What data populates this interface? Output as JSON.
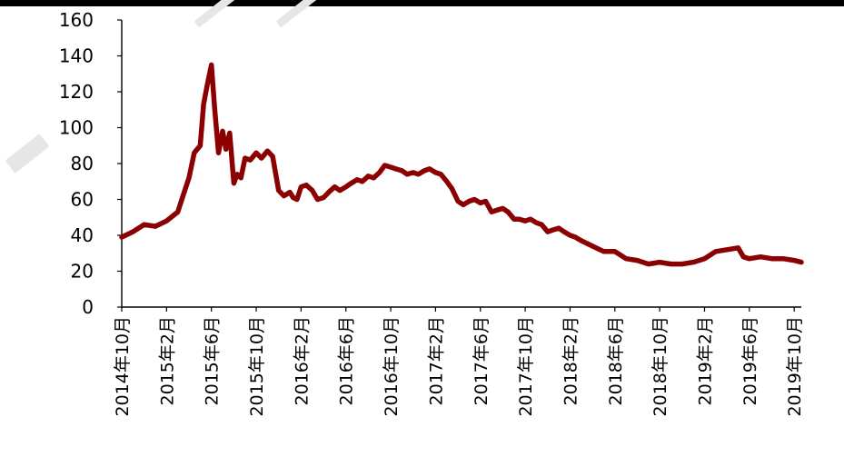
{
  "chart_data": {
    "type": "line",
    "title": "",
    "xlabel": "",
    "ylabel": "",
    "ylim": [
      0,
      160
    ],
    "yticks": [
      "0",
      "20",
      "40",
      "60",
      "80",
      "100",
      "120",
      "140",
      "160"
    ],
    "xticks": [
      "2014年10月",
      "2015年2月",
      "2015年6月",
      "2015年10月",
      "2016年2月",
      "2016年6月",
      "2016年10月",
      "2017年2月",
      "2017年6月",
      "2017年10月",
      "2018年2月",
      "2018年6月",
      "2018年10月",
      "2019年2月",
      "2019年6月",
      "2019年10月"
    ],
    "grid": false,
    "legend": "none",
    "line_color": "#8b0000",
    "series": [
      {
        "x": [
          "2014-10",
          "2014-11",
          "2014-12",
          "2015-01",
          "2015-02",
          "2015-03",
          "2015-03-15",
          "2015-04",
          "2015-04-15",
          "2015-05",
          "2015-05-10",
          "2015-05-20",
          "2015-06",
          "2015-06-10",
          "2015-06-20",
          "2015-07",
          "2015-07-10",
          "2015-07-20",
          "2015-08",
          "2015-08-10",
          "2015-08-20",
          "2015-09",
          "2015-09-15",
          "2015-10",
          "2015-10-15",
          "2015-11",
          "2015-11-15",
          "2015-12",
          "2015-12-15",
          "2016-01",
          "2016-01-10",
          "2016-01-20",
          "2016-02",
          "2016-02-15",
          "2016-03",
          "2016-03-15",
          "2016-04",
          "2016-04-15",
          "2016-05",
          "2016-05-15",
          "2016-06",
          "2016-06-15",
          "2016-07",
          "2016-07-15",
          "2016-08",
          "2016-08-15",
          "2016-09",
          "2016-09-15",
          "2016-10",
          "2016-10-15",
          "2016-11",
          "2016-11-15",
          "2016-12",
          "2016-12-15",
          "2017-01",
          "2017-01-15",
          "2017-02",
          "2017-02-15",
          "2017-03",
          "2017-03-15",
          "2017-04",
          "2017-04-15",
          "2017-05",
          "2017-05-15",
          "2017-06",
          "2017-06-15",
          "2017-07",
          "2017-07-15",
          "2017-08",
          "2017-08-15",
          "2017-09",
          "2017-09-15",
          "2017-10",
          "2017-10-15",
          "2017-11",
          "2017-11-15",
          "2017-12",
          "2017-12-15",
          "2018-01",
          "2018-01-15",
          "2018-02",
          "2018-02-15",
          "2018-03",
          "2018-04",
          "2018-05",
          "2018-06",
          "2018-07",
          "2018-08",
          "2018-09",
          "2018-10",
          "2018-11",
          "2018-12",
          "2019-01",
          "2019-02",
          "2019-03",
          "2019-04",
          "2019-05",
          "2019-05-15",
          "2019-06",
          "2019-07",
          "2019-08",
          "2019-09",
          "2019-10",
          "2019-10-20"
        ],
        "y": [
          39,
          42,
          46,
          45,
          48,
          53,
          62,
          72,
          86,
          90,
          113,
          124,
          135,
          110,
          86,
          98,
          88,
          97,
          69,
          74,
          72,
          83,
          82,
          86,
          83,
          87,
          84,
          65,
          62,
          64,
          61,
          60,
          67,
          68,
          65,
          60,
          61,
          64,
          67,
          65,
          67,
          69,
          71,
          70,
          73,
          72,
          75,
          79,
          78,
          77,
          76,
          74,
          75,
          74,
          76,
          77,
          75,
          74,
          70,
          66,
          59,
          57,
          59,
          60,
          58,
          59,
          53,
          54,
          55,
          53,
          49,
          49,
          48,
          49,
          47,
          46,
          42,
          43,
          44,
          42,
          40,
          39,
          37,
          34,
          31,
          31,
          27,
          26,
          24,
          25,
          24,
          24,
          25,
          27,
          31,
          32,
          33,
          28,
          27,
          28,
          27,
          27,
          26,
          25
        ]
      }
    ]
  }
}
